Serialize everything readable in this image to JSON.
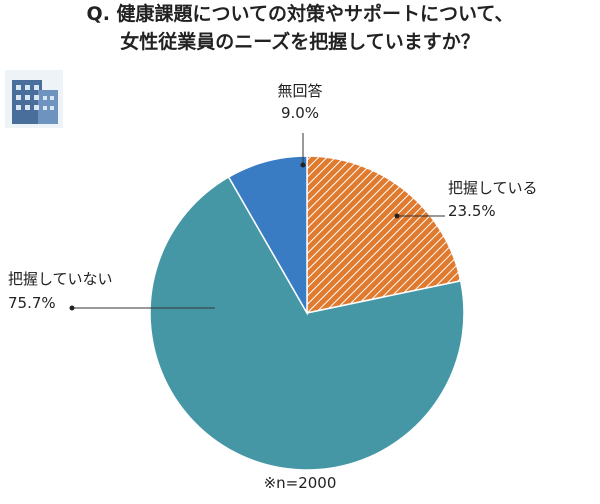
{
  "chart_data": {
    "type": "pie",
    "title": "Q. 健康課題についての対策やサポートについて、",
    "subtitle": "女性従業員のニーズを把握していますか？",
    "categories": [
      "把握している",
      "把握していない",
      "無回答"
    ],
    "values": [
      23.5,
      75.7,
      9.0
    ],
    "value_labels": [
      "23.5%",
      "75.7%",
      "9.0%"
    ],
    "colors": [
      "#e07a2e",
      "#4597a6",
      "#3a7cc4"
    ],
    "note": "※n=2000"
  }
}
